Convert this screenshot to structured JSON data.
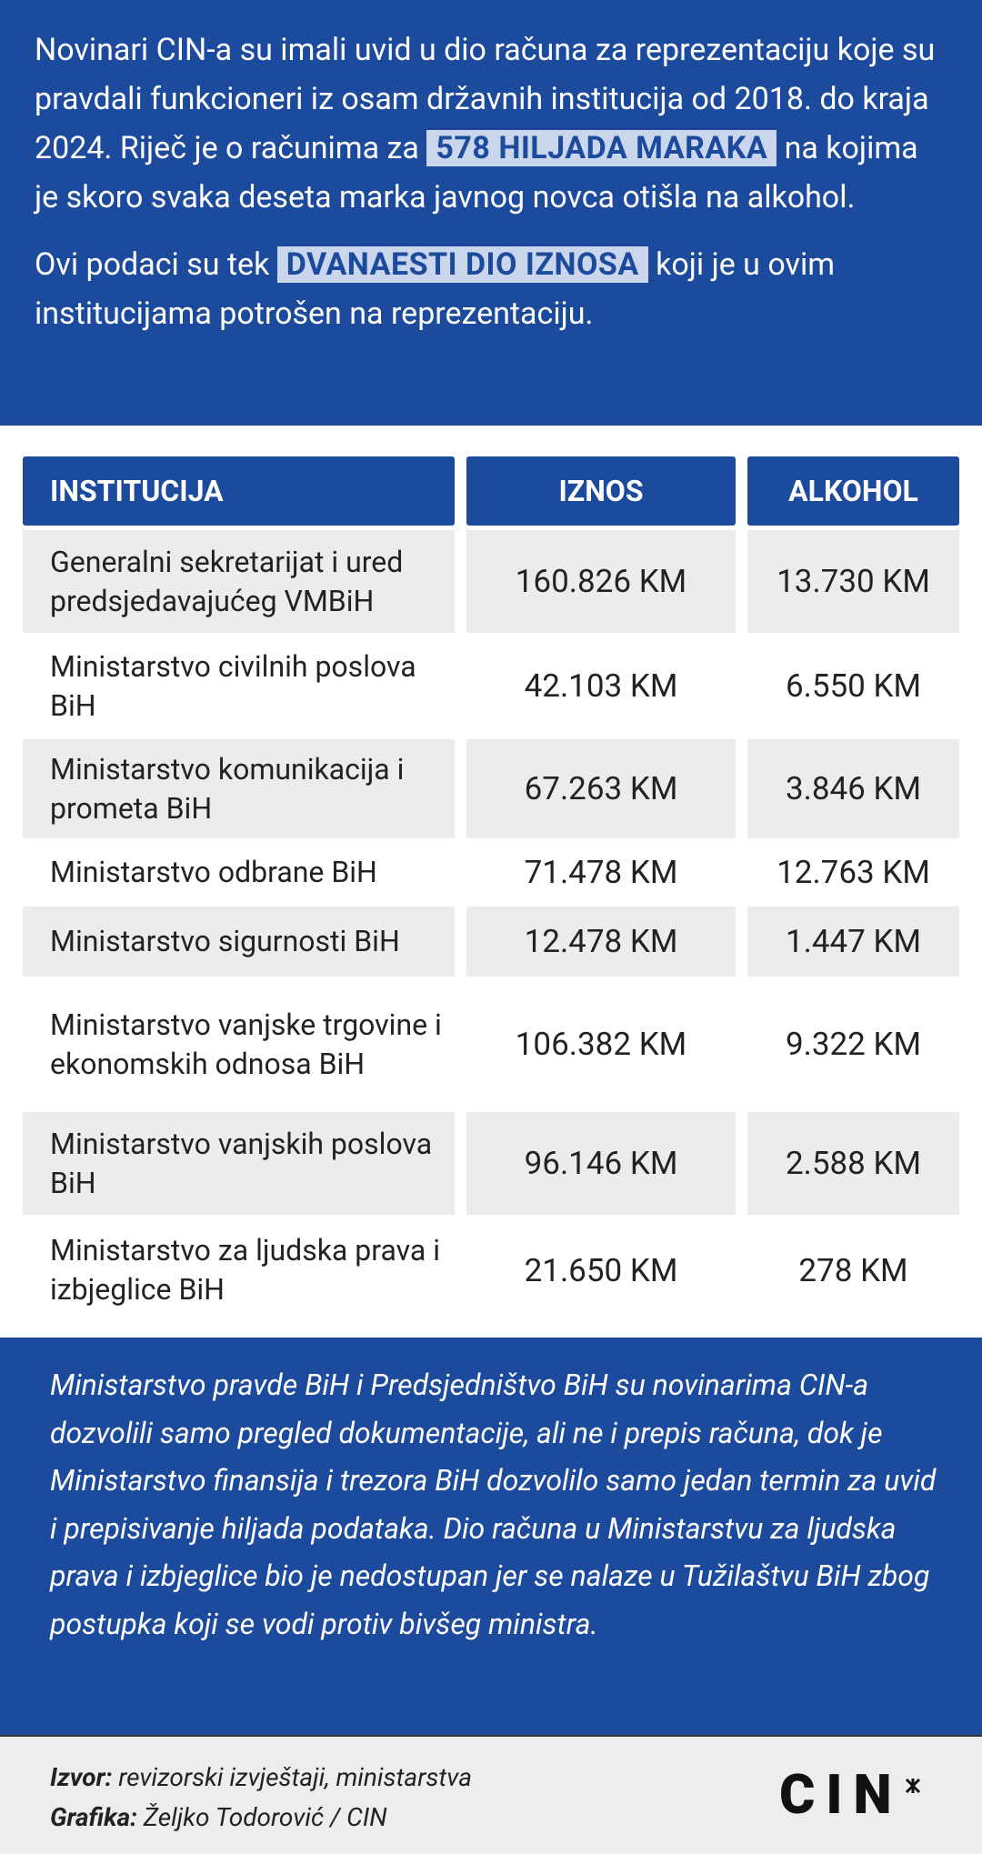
{
  "intro": {
    "p1": [
      "Novinari CIN-a su imali uvid u dio računa za reprezentaciju koje su pravdali funkcioneri iz osam državnih institucija od 2018. do kraja 2024. Riječ je o računima za ",
      "578 HILJADA MARAKA",
      " na kojima je skoro svaka deseta marka javnog novca otišla na alkohol."
    ],
    "p2": [
      "Ovi podaci su tek ",
      "DVANAESTI DIO IZNOSA",
      " koji je u ovim institucijama potrošen na reprezentaciju."
    ]
  },
  "table": {
    "header": [
      "INSTITUCIJA",
      "IZNOS",
      "ALKOHOL"
    ],
    "rows": [
      [
        "Generalni sekretarijat i ured predsjedavajućeg VMBiH",
        "160.826 KM",
        "13.730 KM"
      ],
      [
        "Ministarstvo civilnih poslova BiH",
        "42.103 KM",
        "6.550 KM"
      ],
      [
        "Ministarstvo komunikacija i prometa BiH",
        "67.263 KM",
        "3.846 KM"
      ],
      [
        "Ministarstvo odbrane BiH",
        "71.478 KM",
        "12.763 KM"
      ],
      [
        "Ministarstvo sigurnosti BiH",
        "12.478 KM",
        "1.447 KM"
      ],
      [
        "Ministarstvo vanjske trgovine i ekonomskih odnosa BiH",
        "106.382 KM",
        "9.322 KM"
      ],
      [
        "Ministarstvo vanjskih poslova BiH",
        "96.146 KM",
        "2.588 KM"
      ],
      [
        "Ministarstvo za ljudska prava i izbjeglice BiH",
        "21.650 KM",
        "278 KM"
      ]
    ]
  },
  "note": "Ministarstvo pravde BiH i Predsjedništvo BiH su novinarima CIN-a dozvolili samo pregled dokumentacije, ali ne i prepis računa, dok je Ministarstvo finansija i trezora BiH dozvolilo samo jedan termin za uvid i prepisivanje hiljada podataka. Dio računa u Ministarstvu za ljudska prava i izbjeglice bio je nedostupan jer se nalaze u Tužilaštvu BiH zbog postupka koji se vodi protiv bivšeg ministra.",
  "footer": {
    "source_label": "Izvor:",
    "source": " revizorski izvještaji, ministarstva",
    "credit_label": "Grafika:",
    "credit": " Željko Todorović / CIN",
    "logo": "CIN"
  }
}
